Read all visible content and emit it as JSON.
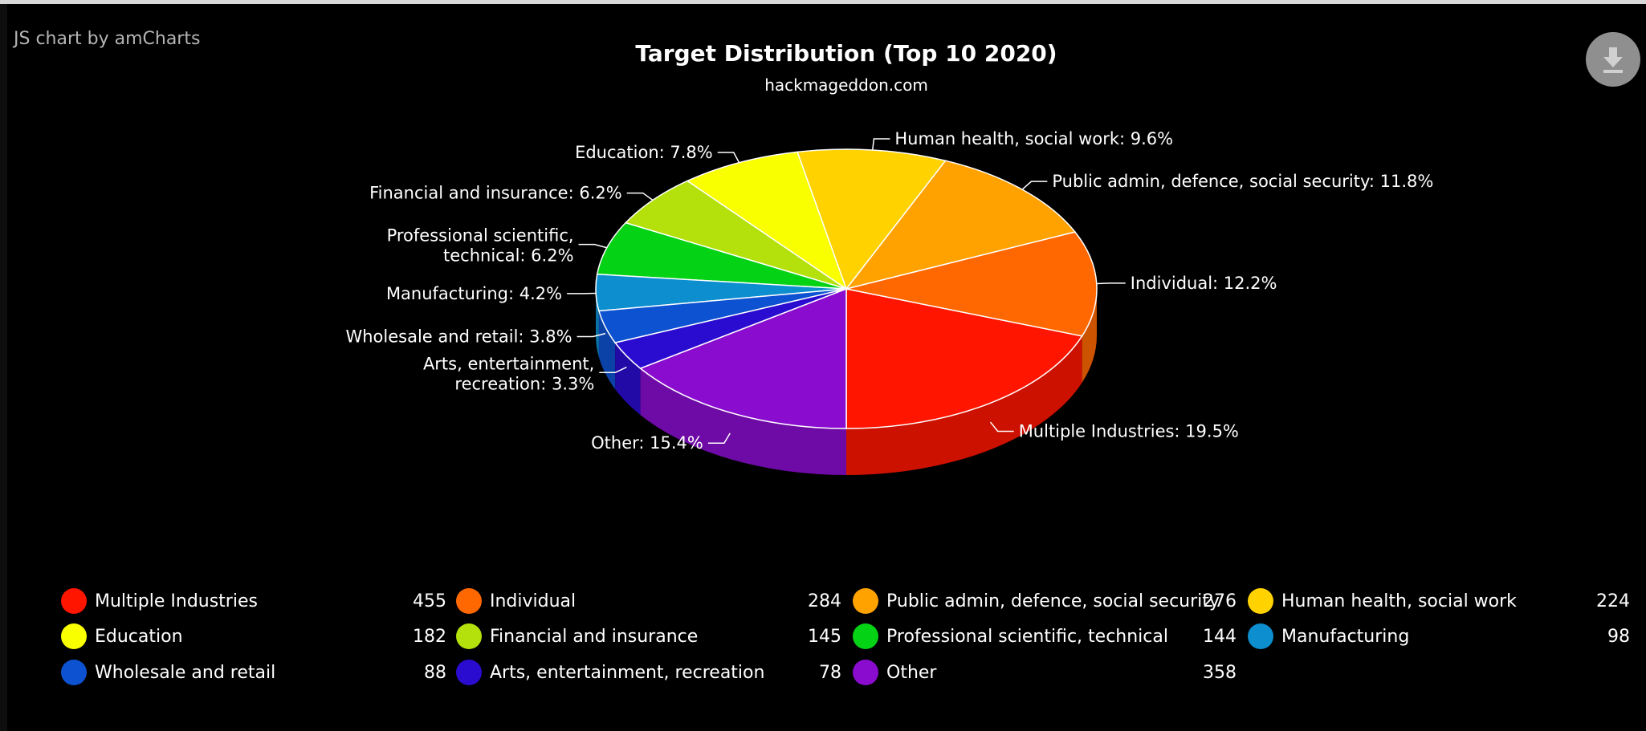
{
  "credit": "JS chart by amCharts",
  "download_icon": "download-icon",
  "chart_data": {
    "type": "pie",
    "title": "Target Distribution (Top 10 2020)",
    "subtitle": "hackmageddon.com",
    "legend_position": "bottom",
    "slices": [
      {
        "name": "Multiple Industries",
        "value": 455,
        "label": "Multiple Industries: 19.5%",
        "color": "#ff1500"
      },
      {
        "name": "Individual",
        "value": 284,
        "label": "Individual: 12.2%",
        "color": "#ff6800"
      },
      {
        "name": "Public admin, defence, social security",
        "value": 276,
        "label": "Public admin, defence, social security: 11.8%",
        "color": "#ffa200"
      },
      {
        "name": "Human health, social work",
        "value": 224,
        "label": "Human health, social work: 9.6%",
        "color": "#ffd200"
      },
      {
        "name": "Education",
        "value": 182,
        "label": "Education: 7.8%",
        "color": "#faff00"
      },
      {
        "name": "Financial and insurance",
        "value": 145,
        "label": "Financial and insurance: 6.2%",
        "color": "#b4e10c"
      },
      {
        "name": "Professional scientific, technical",
        "value": 144,
        "label": "Professional scientific, technical: 6.2%",
        "color": "#04d215"
      },
      {
        "name": "Manufacturing",
        "value": 98,
        "label": "Manufacturing: 4.2%",
        "color": "#0d8ecf"
      },
      {
        "name": "Wholesale and retail",
        "value": 88,
        "label": "Wholesale and retail: 3.8%",
        "color": "#0d52d1"
      },
      {
        "name": "Arts, entertainment, recreation",
        "value": 78,
        "label": "Arts, entertainment, recreation: 3.3%",
        "color": "#2a0cd0"
      },
      {
        "name": "Other",
        "value": 358,
        "label": "Other: 15.4%",
        "color": "#8a0ccf"
      }
    ]
  }
}
